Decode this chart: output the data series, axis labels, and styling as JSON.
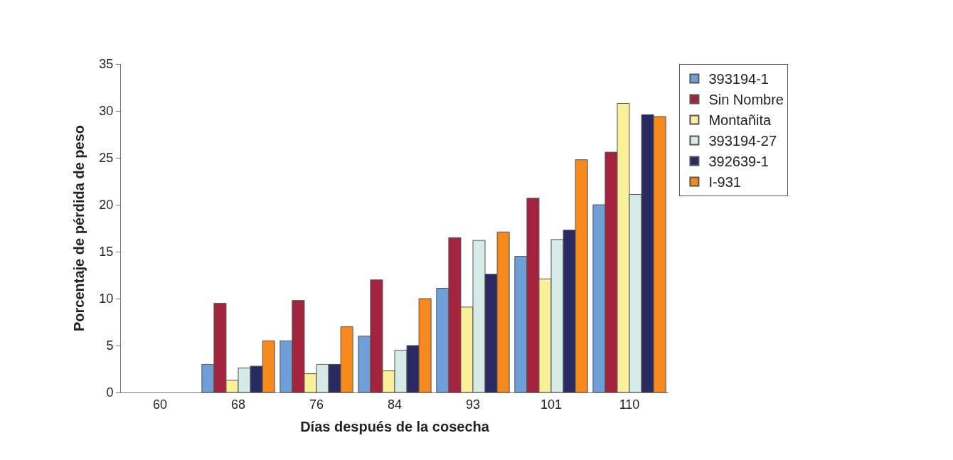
{
  "chart_data": {
    "type": "bar",
    "xlabel": "Días después de la cosecha",
    "ylabel": "Porcentaje de pérdida de peso",
    "categories": [
      "60",
      "68",
      "76",
      "84",
      "93",
      "101",
      "110"
    ],
    "series": [
      {
        "name": "393194-1",
        "color": "#6f9fd8",
        "values": [
          null,
          3.0,
          5.5,
          6.0,
          11.1,
          14.5,
          20.0
        ]
      },
      {
        "name": "Sin Nombre",
        "color": "#a3243f",
        "values": [
          null,
          9.5,
          9.8,
          12.0,
          16.5,
          20.7,
          25.6
        ]
      },
      {
        "name": "Montañita",
        "color": "#fbf09a",
        "values": [
          null,
          1.3,
          2.0,
          2.3,
          9.1,
          12.1,
          30.8
        ]
      },
      {
        "name": "393194-27",
        "color": "#d6ebe6",
        "values": [
          null,
          2.6,
          3.0,
          4.5,
          16.2,
          16.3,
          21.1
        ]
      },
      {
        "name": "392639-1",
        "color": "#2a2a62",
        "values": [
          null,
          2.8,
          3.0,
          5.0,
          12.6,
          17.3,
          29.6
        ]
      },
      {
        "name": "I-931",
        "color": "#f68a1e",
        "values": [
          null,
          5.5,
          7.0,
          10.0,
          17.1,
          24.8,
          29.4
        ]
      }
    ],
    "ylim": [
      0,
      35
    ],
    "yticks": [
      0,
      5,
      10,
      15,
      20,
      25,
      30,
      35
    ],
    "legend": "right"
  }
}
